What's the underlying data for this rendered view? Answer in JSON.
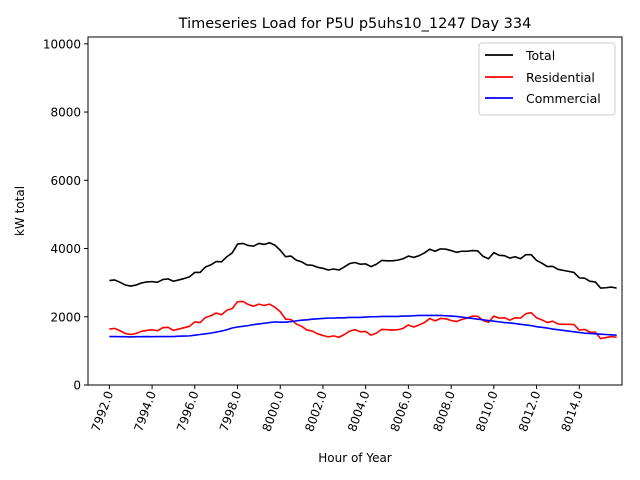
{
  "chart_data": {
    "type": "line",
    "title": "Timeseries Load for P5U p5uhs10_1247  Day 334",
    "xlabel": "Hour of Year",
    "ylabel": "kW total",
    "xlim": [
      7991.0,
      8016.0
    ],
    "ylim": [
      0,
      10200
    ],
    "xticks": [
      7992,
      7994,
      7996,
      7998,
      8000,
      8002,
      8004,
      8006,
      8008,
      8010,
      8012,
      8014
    ],
    "xtick_labels": [
      "7992.0",
      "7994.0",
      "7996.0",
      "7998.0",
      "8000.0",
      "8002.0",
      "8004.0",
      "8006.0",
      "8008.0",
      "8010.0",
      "8012.0",
      "8014.0"
    ],
    "yticks": [
      0,
      2000,
      4000,
      6000,
      8000,
      10000
    ],
    "ytick_labels": [
      "0",
      "2000",
      "4000",
      "6000",
      "8000",
      "10000"
    ],
    "legend": "top-right",
    "series": [
      {
        "name": "Total",
        "color": "#000000",
        "x": [
          7992.0,
          7992.25,
          7992.5,
          7992.75,
          7993.0,
          7993.25,
          7993.5,
          7993.75,
          7994.0,
          7994.25,
          7994.5,
          7994.75,
          7995.0,
          7995.25,
          7995.5,
          7995.75,
          7996.0,
          7996.25,
          7996.5,
          7996.75,
          7997.0,
          7997.25,
          7997.5,
          7997.75,
          7998.0,
          7998.25,
          7998.5,
          7998.75,
          7999.0,
          7999.25,
          7999.5,
          7999.75,
          8000.0,
          8000.25,
          8000.5,
          8000.75,
          8001.0,
          8001.25,
          8001.5,
          8001.75,
          8002.0,
          8002.25,
          8002.5,
          8002.75,
          8003.0,
          8003.25,
          8003.5,
          8003.75,
          8004.0,
          8004.25,
          8004.5,
          8004.75,
          8005.0,
          8005.25,
          8005.5,
          8005.75,
          8006.0,
          8006.25,
          8006.5,
          8006.75,
          8007.0,
          8007.25,
          8007.5,
          8007.75,
          8008.0,
          8008.25,
          8008.5,
          8008.75,
          8009.0,
          8009.25,
          8009.5,
          8009.75,
          8010.0,
          8010.25,
          8010.5,
          8010.75,
          8011.0,
          8011.25,
          8011.5,
          8011.75,
          8012.0,
          8012.25,
          8012.5,
          8012.75,
          8013.0,
          8013.25,
          8013.5,
          8013.75,
          8014.0,
          8014.25,
          8014.5,
          8014.75,
          8015.0,
          8015.25,
          8015.5,
          8015.75
        ],
        "values": [
          3060,
          3080,
          3010,
          2930,
          2900,
          2930,
          2990,
          3020,
          3030,
          3010,
          3090,
          3110,
          3040,
          3080,
          3120,
          3170,
          3300,
          3300,
          3460,
          3520,
          3620,
          3610,
          3760,
          3870,
          4130,
          4150,
          4090,
          4070,
          4150,
          4120,
          4170,
          4100,
          3950,
          3760,
          3780,
          3660,
          3610,
          3520,
          3510,
          3450,
          3420,
          3370,
          3400,
          3370,
          3460,
          3560,
          3590,
          3540,
          3550,
          3470,
          3540,
          3650,
          3640,
          3640,
          3660,
          3700,
          3780,
          3740,
          3790,
          3870,
          3980,
          3920,
          3990,
          3980,
          3940,
          3890,
          3920,
          3920,
          3940,
          3930,
          3770,
          3700,
          3880,
          3800,
          3790,
          3720,
          3760,
          3700,
          3820,
          3820,
          3650,
          3570,
          3470,
          3480,
          3390,
          3360,
          3330,
          3300,
          3140,
          3130,
          3040,
          3020,
          2840,
          2850,
          2870,
          2840
        ]
      },
      {
        "name": "Residential",
        "color": "#ff0000",
        "x": [
          7992.0,
          7992.25,
          7992.5,
          7992.75,
          7993.0,
          7993.25,
          7993.5,
          7993.75,
          7994.0,
          7994.25,
          7994.5,
          7994.75,
          7995.0,
          7995.25,
          7995.5,
          7995.75,
          7996.0,
          7996.25,
          7996.5,
          7996.75,
          7997.0,
          7997.25,
          7997.5,
          7997.75,
          7998.0,
          7998.25,
          7998.5,
          7998.75,
          7999.0,
          7999.25,
          7999.5,
          7999.75,
          8000.0,
          8000.25,
          8000.5,
          8000.75,
          8001.0,
          8001.25,
          8001.5,
          8001.75,
          8002.0,
          8002.25,
          8002.5,
          8002.75,
          8003.0,
          8003.25,
          8003.5,
          8003.75,
          8004.0,
          8004.25,
          8004.5,
          8004.75,
          8005.0,
          8005.25,
          8005.5,
          8005.75,
          8006.0,
          8006.25,
          8006.5,
          8006.75,
          8007.0,
          8007.25,
          8007.5,
          8007.75,
          8008.0,
          8008.25,
          8008.5,
          8008.75,
          8009.0,
          8009.25,
          8009.5,
          8009.75,
          8010.0,
          8010.25,
          8010.5,
          8010.75,
          8011.0,
          8011.25,
          8011.5,
          8011.75,
          8012.0,
          8012.25,
          8012.5,
          8012.75,
          8013.0,
          8013.25,
          8013.5,
          8013.75,
          8014.0,
          8014.25,
          8014.5,
          8014.75,
          8015.0,
          8015.25,
          8015.5,
          8015.75
        ],
        "values": [
          1640,
          1660,
          1590,
          1510,
          1480,
          1510,
          1570,
          1600,
          1620,
          1590,
          1680,
          1690,
          1600,
          1640,
          1680,
          1720,
          1850,
          1830,
          1980,
          2030,
          2110,
          2060,
          2190,
          2240,
          2440,
          2450,
          2360,
          2310,
          2370,
          2330,
          2370,
          2280,
          2150,
          1930,
          1920,
          1790,
          1720,
          1610,
          1580,
          1500,
          1450,
          1410,
          1440,
          1400,
          1480,
          1580,
          1620,
          1560,
          1570,
          1460,
          1520,
          1630,
          1620,
          1610,
          1620,
          1660,
          1760,
          1700,
          1760,
          1830,
          1950,
          1880,
          1950,
          1940,
          1890,
          1860,
          1920,
          1960,
          2020,
          2010,
          1890,
          1840,
          2020,
          1960,
          1970,
          1900,
          1970,
          1960,
          2090,
          2120,
          1970,
          1910,
          1830,
          1870,
          1790,
          1780,
          1780,
          1770,
          1610,
          1630,
          1550,
          1550,
          1360,
          1390,
          1420,
          1400
        ]
      },
      {
        "name": "Commercial",
        "color": "#0000ff",
        "x": [
          7992.0,
          7992.25,
          7992.5,
          7992.75,
          7993.0,
          7993.25,
          7993.5,
          7993.75,
          7994.0,
          7994.25,
          7994.5,
          7994.75,
          7995.0,
          7995.25,
          7995.5,
          7995.75,
          7996.0,
          7996.25,
          7996.5,
          7996.75,
          7997.0,
          7997.25,
          7997.5,
          7997.75,
          7998.0,
          7998.25,
          7998.5,
          7998.75,
          7999.0,
          7999.25,
          7999.5,
          7999.75,
          8000.0,
          8000.25,
          8000.5,
          8000.75,
          8001.0,
          8001.25,
          8001.5,
          8001.75,
          8002.0,
          8002.25,
          8002.5,
          8002.75,
          8003.0,
          8003.25,
          8003.5,
          8003.75,
          8004.0,
          8004.25,
          8004.5,
          8004.75,
          8005.0,
          8005.25,
          8005.5,
          8005.75,
          8006.0,
          8006.25,
          8006.5,
          8006.75,
          8007.0,
          8007.25,
          8007.5,
          8007.75,
          8008.0,
          8008.25,
          8008.5,
          8008.75,
          8009.0,
          8009.25,
          8009.5,
          8009.75,
          8010.0,
          8010.25,
          8010.5,
          8010.75,
          8011.0,
          8011.25,
          8011.5,
          8011.75,
          8012.0,
          8012.25,
          8012.5,
          8012.75,
          8013.0,
          8013.25,
          8013.5,
          8013.75,
          8014.0,
          8014.25,
          8014.5,
          8014.75,
          8015.0,
          8015.25,
          8015.5,
          8015.75
        ],
        "values": [
          1420,
          1420,
          1415,
          1415,
          1410,
          1415,
          1415,
          1420,
          1415,
          1420,
          1420,
          1420,
          1420,
          1430,
          1435,
          1440,
          1460,
          1480,
          1500,
          1520,
          1550,
          1580,
          1620,
          1670,
          1700,
          1720,
          1740,
          1770,
          1790,
          1810,
          1830,
          1850,
          1840,
          1840,
          1860,
          1880,
          1900,
          1910,
          1930,
          1940,
          1950,
          1960,
          1960,
          1970,
          1970,
          1980,
          1980,
          1980,
          1990,
          2000,
          2000,
          2010,
          2010,
          2010,
          2010,
          2020,
          2020,
          2030,
          2040,
          2040,
          2040,
          2040,
          2040,
          2030,
          2020,
          2010,
          1990,
          1970,
          1950,
          1930,
          1910,
          1890,
          1870,
          1850,
          1830,
          1820,
          1800,
          1780,
          1760,
          1740,
          1710,
          1690,
          1670,
          1640,
          1620,
          1600,
          1580,
          1560,
          1540,
          1520,
          1510,
          1500,
          1490,
          1480,
          1470,
          1460
        ]
      }
    ]
  }
}
